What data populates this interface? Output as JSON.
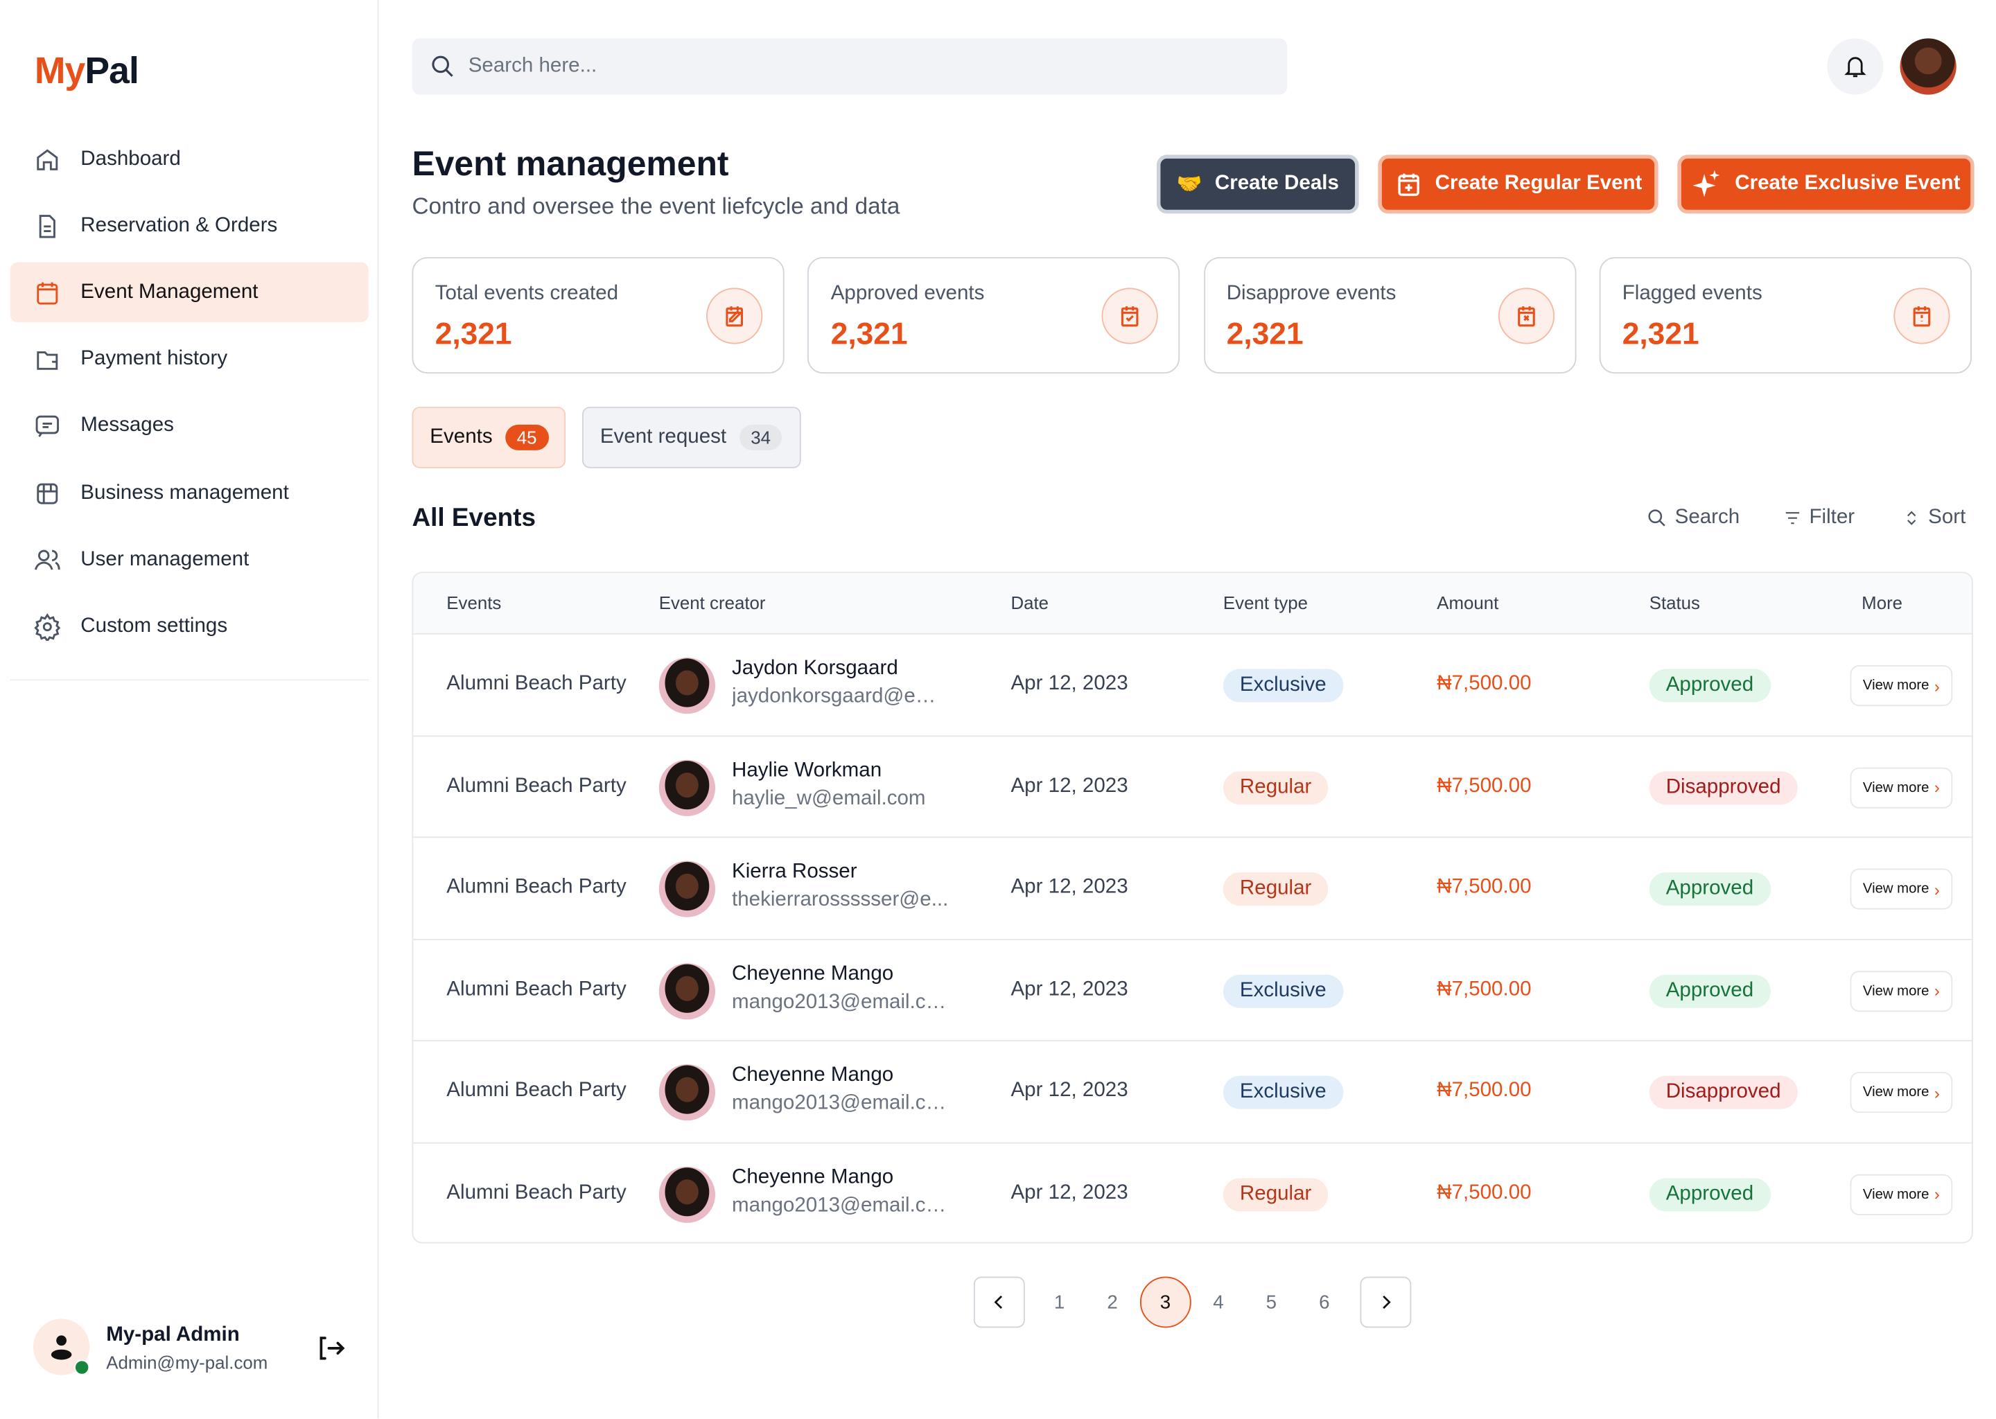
{
  "brand": {
    "part1": "My",
    "part2": "Pal"
  },
  "sidebar": {
    "items": [
      {
        "label": "Dashboard",
        "icon": "home-icon"
      },
      {
        "label": "Reservation & Orders",
        "icon": "document-icon"
      },
      {
        "label": "Event Management",
        "icon": "calendar-icon",
        "active": true
      },
      {
        "label": "Payment history",
        "icon": "wallet-icon"
      },
      {
        "label": "Messages",
        "icon": "message-icon"
      },
      {
        "label": "Business management",
        "icon": "store-icon"
      },
      {
        "label": "User management",
        "icon": "users-icon"
      },
      {
        "label": "Custom settings",
        "icon": "gear-icon"
      }
    ],
    "user": {
      "name": "My-pal Admin",
      "email": "Admin@my-pal.com"
    }
  },
  "search": {
    "placeholder": "Search here..."
  },
  "header": {
    "title": "Event management",
    "subtitle": "Contro and oversee the event liefcycle and data"
  },
  "actions": {
    "deals": "Create Deals",
    "regular": "Create Regular Event",
    "exclusive": "Create Exclusive Event"
  },
  "stats": [
    {
      "label": "Total events created",
      "value": "2,321"
    },
    {
      "label": "Approved events",
      "value": "2,321"
    },
    {
      "label": "Disapprove events",
      "value": "2,321"
    },
    {
      "label": "Flagged events",
      "value": "2,321"
    }
  ],
  "tabs": [
    {
      "label": "Events",
      "count": "45"
    },
    {
      "label": "Event request",
      "count": "34"
    }
  ],
  "section": {
    "title": "All Events",
    "search": "Search",
    "filter": "Filter",
    "sort": "Sort"
  },
  "table": {
    "columns": [
      "Events",
      "Event creator",
      "Date",
      "Event type",
      "Amount",
      "Status",
      "More"
    ],
    "view_more": "View more",
    "rows": [
      {
        "event": "Alumni Beach Party",
        "name": "Jaydon Korsgaard",
        "email": "jaydonkorsgaard@em...",
        "date": "Apr 12, 2023",
        "type": "Exclusive",
        "amount": "₦7,500.00",
        "status": "Approved"
      },
      {
        "event": "Alumni Beach Party",
        "name": "Haylie Workman",
        "email": "haylie_w@email.com",
        "date": "Apr 12, 2023",
        "type": "Regular",
        "amount": "₦7,500.00",
        "status": "Disapproved"
      },
      {
        "event": "Alumni Beach Party",
        "name": "Kierra Rosser",
        "email": "thekierrarossssser@e...",
        "date": "Apr 12, 2023",
        "type": "Regular",
        "amount": "₦7,500.00",
        "status": "Approved"
      },
      {
        "event": "Alumni Beach Party",
        "name": "Cheyenne Mango",
        "email": "mango2013@email.co...",
        "date": "Apr 12, 2023",
        "type": "Exclusive",
        "amount": "₦7,500.00",
        "status": "Approved"
      },
      {
        "event": "Alumni Beach Party",
        "name": "Cheyenne Mango",
        "email": "mango2013@email.co...",
        "date": "Apr 12, 2023",
        "type": "Exclusive",
        "amount": "₦7,500.00",
        "status": "Disapproved"
      },
      {
        "event": "Alumni Beach Party",
        "name": "Cheyenne Mango",
        "email": "mango2013@email.co...",
        "date": "Apr 12, 2023",
        "type": "Regular",
        "amount": "₦7,500.00",
        "status": "Approved"
      }
    ]
  },
  "pagination": {
    "pages": [
      "1",
      "2",
      "3",
      "4",
      "5",
      "6"
    ],
    "current": "3"
  },
  "colors": {
    "accent": "#e8501a",
    "dark": "#374151"
  }
}
